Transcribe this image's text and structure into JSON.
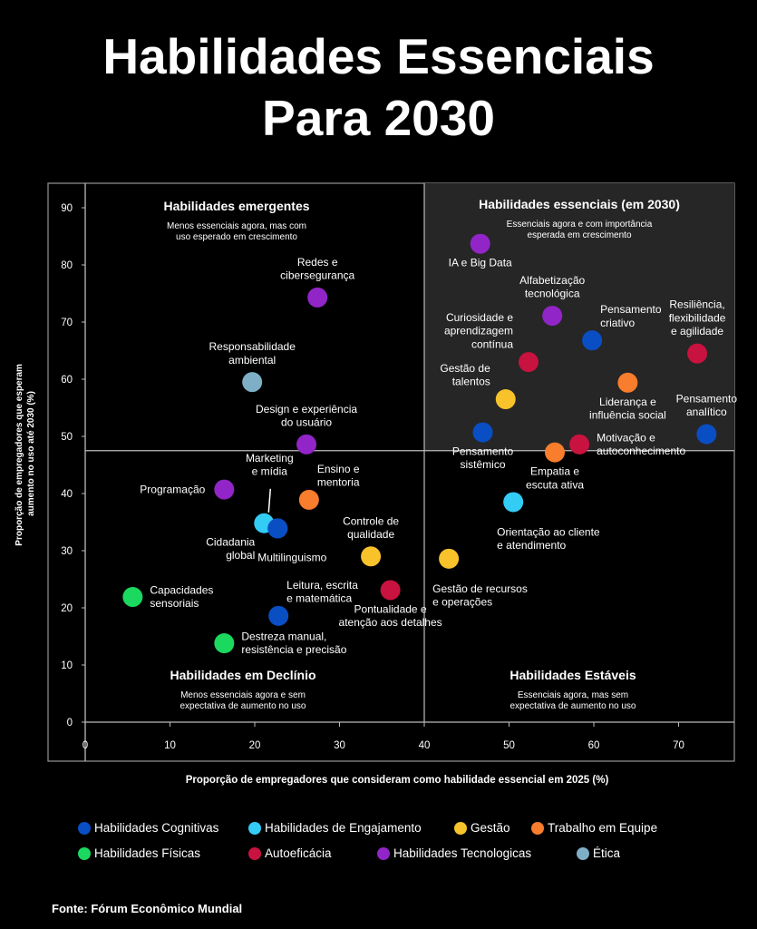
{
  "title_lines": [
    "Habilidades Essenciais",
    "Para 2030"
  ],
  "source": "Fonte: Fórum Econômico Mundial",
  "chart_data": {
    "type": "scatter",
    "xlabel": "Proporção de empregadores que consideram como habilidade essencial em 2025 (%)",
    "ylabel_lines": [
      "Proporção de empregadores que esperam",
      "aumento no uso até 2030 (%)"
    ],
    "xlim": [
      0,
      79
    ],
    "ylim": [
      0,
      93
    ],
    "x_ticks": [
      0,
      10,
      20,
      30,
      40,
      50,
      60,
      70
    ],
    "y_ticks": [
      0,
      10,
      20,
      30,
      40,
      50,
      60,
      70,
      80,
      90
    ],
    "divider_x": 40,
    "divider_y": 47.5,
    "quadrants": [
      {
        "id": "top-left",
        "title": "Habilidades emergentes",
        "subtitle_lines": [
          "Menos essenciais agora, mas com",
          "uso esperado em crescimento"
        ]
      },
      {
        "id": "top-right",
        "title": "Habilidades essenciais (em 2030)",
        "subtitle_lines": [
          "Essenciais agora e com importância",
          "esperada em crescimento"
        ]
      },
      {
        "id": "bottom-left",
        "title": "Habilidades em Declínio",
        "subtitle_lines": [
          "Menos essenciais agora e sem",
          "expectativa de aumento no uso"
        ]
      },
      {
        "id": "bottom-right",
        "title": "Habilidades Estáveis",
        "subtitle_lines": [
          "Essenciais agora, mas sem",
          "expectativa de aumento no uso"
        ]
      }
    ],
    "categories": [
      {
        "key": "cognitivas",
        "name": "Habilidades Cognitivas",
        "color": "#0a4ec4"
      },
      {
        "key": "engajamento",
        "name": "Habilidades de Engajamento",
        "color": "#33ccf5"
      },
      {
        "key": "gestao",
        "name": "Gestão",
        "color": "#f7c22a"
      },
      {
        "key": "equipe",
        "name": "Trabalho em Equipe",
        "color": "#f87d2c"
      },
      {
        "key": "fisicas",
        "name": "Habilidades Físicas",
        "color": "#1bd85e"
      },
      {
        "key": "autoeficacia",
        "name": "Autoeficácia",
        "color": "#c8123f"
      },
      {
        "key": "tecnologicas",
        "name": "Habilidades Tecnologicas",
        "color": "#9225c7"
      },
      {
        "key": "etica",
        "name": "Ética",
        "color": "#7eafc6"
      }
    ],
    "points": [
      {
        "label_lines": [
          "IA e Big Data"
        ],
        "x": 46.6,
        "y": 83.7,
        "category": "tecnologicas",
        "label_pos": "below"
      },
      {
        "label_lines": [
          "Alfabetização",
          "tecnológica"
        ],
        "x": 55.1,
        "y": 71.1,
        "category": "tecnologicas",
        "label_pos": "above"
      },
      {
        "label_lines": [
          "Resiliência,",
          "flexibilidade",
          "e agilidade"
        ],
        "x": 72.2,
        "y": 64.5,
        "category": "autoeficacia",
        "label_pos": "above"
      },
      {
        "label_lines": [
          "Pensamento",
          "criativo"
        ],
        "x": 59.8,
        "y": 66.8,
        "category": "cognitivas",
        "label_pos": "upper-right"
      },
      {
        "label_lines": [
          "Curiosidade e",
          "aprendizagem",
          "contínua"
        ],
        "x": 52.3,
        "y": 63.0,
        "category": "autoeficacia",
        "label_pos": "upper-left"
      },
      {
        "label_lines": [
          "Gestão de",
          "talentos"
        ],
        "x": 49.6,
        "y": 56.5,
        "category": "gestao",
        "label_pos": "upper-left"
      },
      {
        "label_lines": [
          "Liderança e",
          "influência social"
        ],
        "x": 64.0,
        "y": 59.4,
        "category": "equipe",
        "label_pos": "below"
      },
      {
        "label_lines": [
          "Pensamento",
          "analítico"
        ],
        "x": 73.3,
        "y": 50.4,
        "category": "cognitivas",
        "label_pos": "above"
      },
      {
        "label_lines": [
          "Pensamento",
          "sistêmico"
        ],
        "x": 46.9,
        "y": 50.7,
        "category": "cognitivas",
        "label_pos": "below"
      },
      {
        "label_lines": [
          "Motivação e",
          "autoconhecimento"
        ],
        "x": 58.3,
        "y": 48.6,
        "category": "autoeficacia",
        "label_pos": "right"
      },
      {
        "label_lines": [
          "Empatia e",
          "escuta ativa"
        ],
        "x": 55.4,
        "y": 47.2,
        "category": "equipe",
        "label_pos": "below"
      },
      {
        "label_lines": [
          "Redes e",
          "cibersegurança"
        ],
        "x": 27.4,
        "y": 74.3,
        "category": "tecnologicas",
        "label_pos": "above"
      },
      {
        "label_lines": [
          "Responsabilidade",
          "ambiental"
        ],
        "x": 19.7,
        "y": 59.5,
        "category": "etica",
        "label_pos": "above"
      },
      {
        "label_lines": [
          "Design e experiência",
          "do usuário"
        ],
        "x": 26.1,
        "y": 48.6,
        "category": "tecnologicas",
        "label_pos": "above"
      },
      {
        "label_lines": [
          "Programação"
        ],
        "x": 16.4,
        "y": 40.7,
        "category": "tecnologicas",
        "label_pos": "left"
      },
      {
        "label_lines": [
          "Ensino e",
          "mentoria"
        ],
        "x": 26.4,
        "y": 38.9,
        "category": "equipe",
        "label_pos": "upper-right"
      },
      {
        "label_lines": [
          "Marketing",
          "e mídia"
        ],
        "x": 21.1,
        "y": 34.8,
        "category": "engajamento",
        "label_pos": "marketing"
      },
      {
        "label_lines": [
          "Cidadania",
          "global"
        ],
        "x": 22.7,
        "y": 33.9,
        "category": "cognitivas",
        "label_pos": "lower-left"
      },
      {
        "label_lines": [
          "Multilinguismo"
        ],
        "x": 22.7,
        "y": 33.9,
        "category": "cognitivas",
        "label_pos": "none"
      },
      {
        "label_lines": [
          "Orientação ao cliente",
          "e atendimento"
        ],
        "x": 50.5,
        "y": 38.5,
        "category": "engajamento",
        "label_pos": "lower-right"
      },
      {
        "label_lines": [
          "Controle de",
          "qualidade"
        ],
        "x": 33.7,
        "y": 29.0,
        "category": "gestao",
        "label_pos": "above"
      },
      {
        "label_lines": [
          "Gestão de recursos",
          "e operações"
        ],
        "x": 42.9,
        "y": 28.6,
        "category": "gestao",
        "label_pos": "lower-right"
      },
      {
        "label_lines": [
          "Leitura, escrita",
          "e matemática"
        ],
        "x": 22.8,
        "y": 18.6,
        "category": "cognitivas",
        "label_pos": "upper-right"
      },
      {
        "label_lines": [
          "Pontualidade e",
          "atenção aos detalhes"
        ],
        "x": 36.0,
        "y": 23.1,
        "category": "autoeficacia",
        "label_pos": "below"
      },
      {
        "label_lines": [
          "Capacidades",
          "sensoriais"
        ],
        "x": 5.6,
        "y": 21.9,
        "category": "fisicas",
        "label_pos": "right"
      },
      {
        "label_lines": [
          "Destreza manual,",
          "resistência e precisão"
        ],
        "x": 16.4,
        "y": 13.8,
        "category": "fisicas",
        "label_pos": "right"
      }
    ]
  }
}
